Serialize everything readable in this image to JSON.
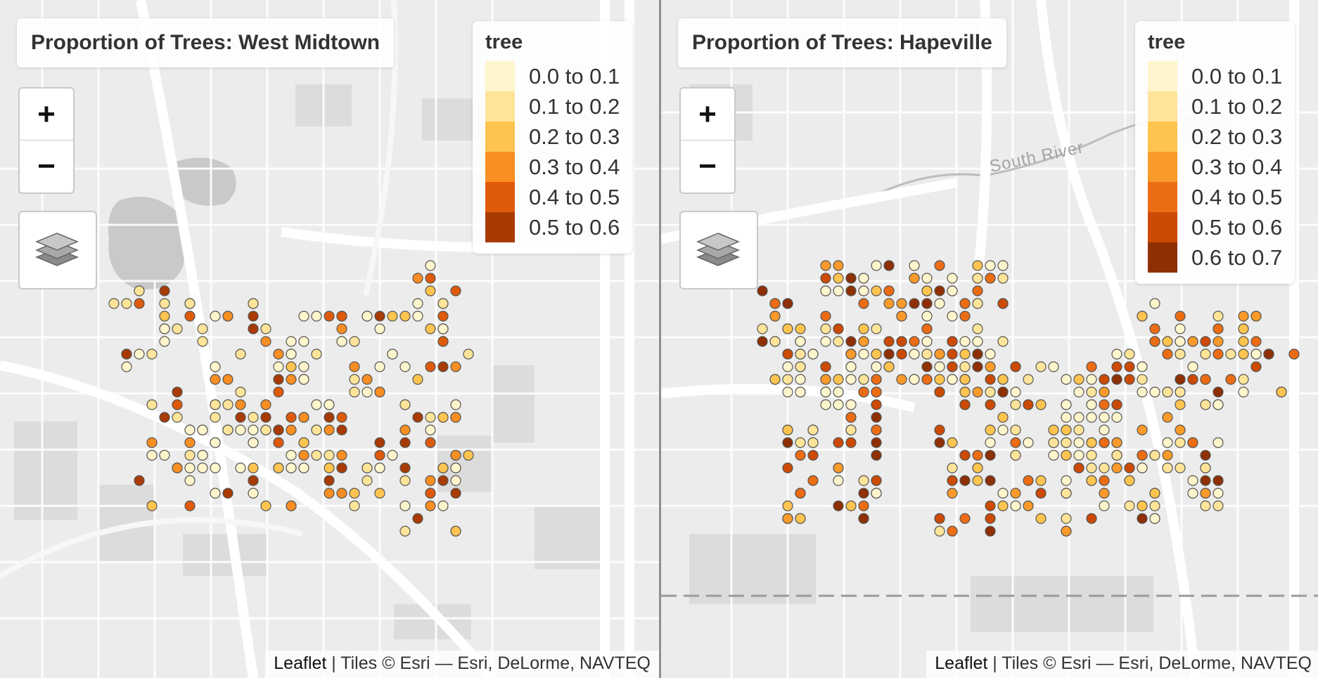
{
  "maps": [
    {
      "title": "Proportion of Trees: West Midtown",
      "legend": {
        "title": "tree",
        "entries": [
          {
            "label": "0.0 to 0.1",
            "color": "#FFF5CC"
          },
          {
            "label": "0.1 to 0.2",
            "color": "#FEE499"
          },
          {
            "label": "0.2 to 0.3",
            "color": "#FEC44F"
          },
          {
            "label": "0.3 to 0.4",
            "color": "#F98E22"
          },
          {
            "label": "0.4 to 0.5",
            "color": "#DE5A0A"
          },
          {
            "label": "0.5 to 0.6",
            "color": "#A83A04"
          }
        ]
      },
      "zoom_in": "+",
      "zoom_out": "−",
      "attribution_link": "Leaflet",
      "attribution_text": " | Tiles © Esri — Esri, DeLorme, NAVTEQ"
    },
    {
      "title": "Proportion of Trees: Hapeville",
      "legend": {
        "title": "tree",
        "entries": [
          {
            "label": "0.0 to 0.1",
            "color": "#FFF5CC"
          },
          {
            "label": "0.1 to 0.2",
            "color": "#FEE499"
          },
          {
            "label": "0.2 to 0.3",
            "color": "#FEC44F"
          },
          {
            "label": "0.3 to 0.4",
            "color": "#F99A2A"
          },
          {
            "label": "0.4 to 0.5",
            "color": "#EC6C14"
          },
          {
            "label": "0.5 to 0.6",
            "color": "#CC4A04"
          },
          {
            "label": "0.6 to 0.7",
            "color": "#8E2F04"
          }
        ]
      },
      "zoom_in": "+",
      "zoom_out": "−",
      "attribution_link": "Leaflet",
      "attribution_text": " | Tiles © Esri — Esri, DeLorme, NAVTEQ",
      "basemap_label": "South River"
    }
  ]
}
